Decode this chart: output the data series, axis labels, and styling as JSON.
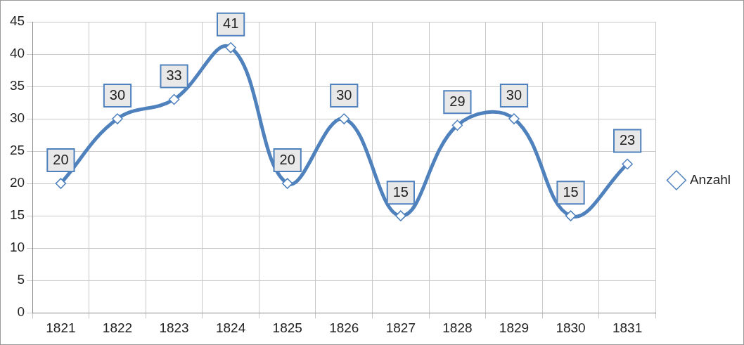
{
  "chart_data": {
    "type": "line",
    "categories": [
      "1821",
      "1822",
      "1823",
      "1824",
      "1825",
      "1826",
      "1827",
      "1828",
      "1829",
      "1830",
      "1831"
    ],
    "series": [
      {
        "name": "Anzahl",
        "color": "#4f81bd",
        "values": [
          20,
          30,
          33,
          41,
          20,
          30,
          15,
          29,
          30,
          15,
          23
        ]
      }
    ],
    "ylim": [
      0,
      45
    ],
    "yticks": [
      0,
      5,
      10,
      15,
      20,
      25,
      30,
      35,
      40,
      45
    ],
    "grid": true,
    "legend": "right",
    "marker": "diamond",
    "line_style": "solid",
    "data_labels": true
  }
}
